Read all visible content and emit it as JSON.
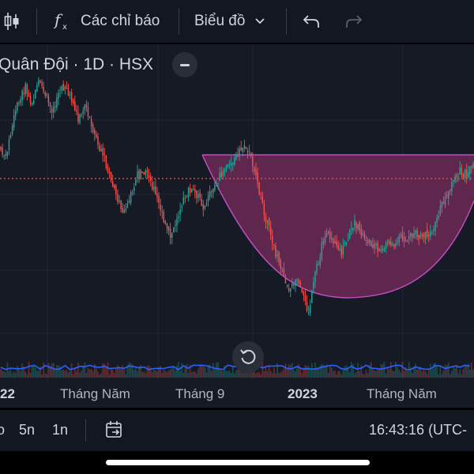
{
  "toolbar": {
    "candle_icon": "candlestick-icon",
    "indicators_label": "Các chỉ báo",
    "chart_type_label": "Biểu đồ",
    "undo_icon": "undo-icon",
    "redo_icon": "redo-icon"
  },
  "legend": {
    "symbol": "Quân Đội · 1D · HSX"
  },
  "time_axis": {
    "labels": [
      "22",
      "Tháng Năm",
      "Tháng 9",
      "2023",
      "Tháng Năm"
    ]
  },
  "bottom_bar": {
    "ranges": [
      "o",
      "5n",
      "1n"
    ],
    "clock": "16:43:16 (UTC-"
  },
  "colors": {
    "up": "#26a69a",
    "down": "#ef5350",
    "pattern_fill": "#7b2d5e",
    "pattern_stroke": "#c04cc0",
    "price_line": "#ef5350",
    "volume_line": "#2962ff"
  },
  "chart_data": {
    "type": "candlestick",
    "pattern": "cup",
    "x_tick_labels": [
      "22",
      "Tháng Năm",
      "Tháng 9",
      "2023",
      "Tháng Năm"
    ],
    "price_path_index": [
      0.7,
      0.66,
      0.8,
      0.9,
      0.95,
      0.88,
      0.97,
      0.92,
      0.85,
      0.93,
      0.96,
      0.9,
      0.82,
      0.88,
      0.8,
      0.7,
      0.65,
      0.55,
      0.48,
      0.42,
      0.5,
      0.58,
      0.6,
      0.55,
      0.5,
      0.38,
      0.32,
      0.4,
      0.48,
      0.52,
      0.5,
      0.45,
      0.5,
      0.55,
      0.6,
      0.62,
      0.66,
      0.7,
      0.68,
      0.58,
      0.45,
      0.35,
      0.25,
      0.18,
      0.1,
      0.14,
      0.08,
      0.0,
      0.16,
      0.28,
      0.34,
      0.3,
      0.25,
      0.32,
      0.38,
      0.34,
      0.3,
      0.28,
      0.26,
      0.3,
      0.28,
      0.32,
      0.3,
      0.34,
      0.32,
      0.33,
      0.36,
      0.44,
      0.5,
      0.55,
      0.6,
      0.58,
      0.64
    ]
  }
}
